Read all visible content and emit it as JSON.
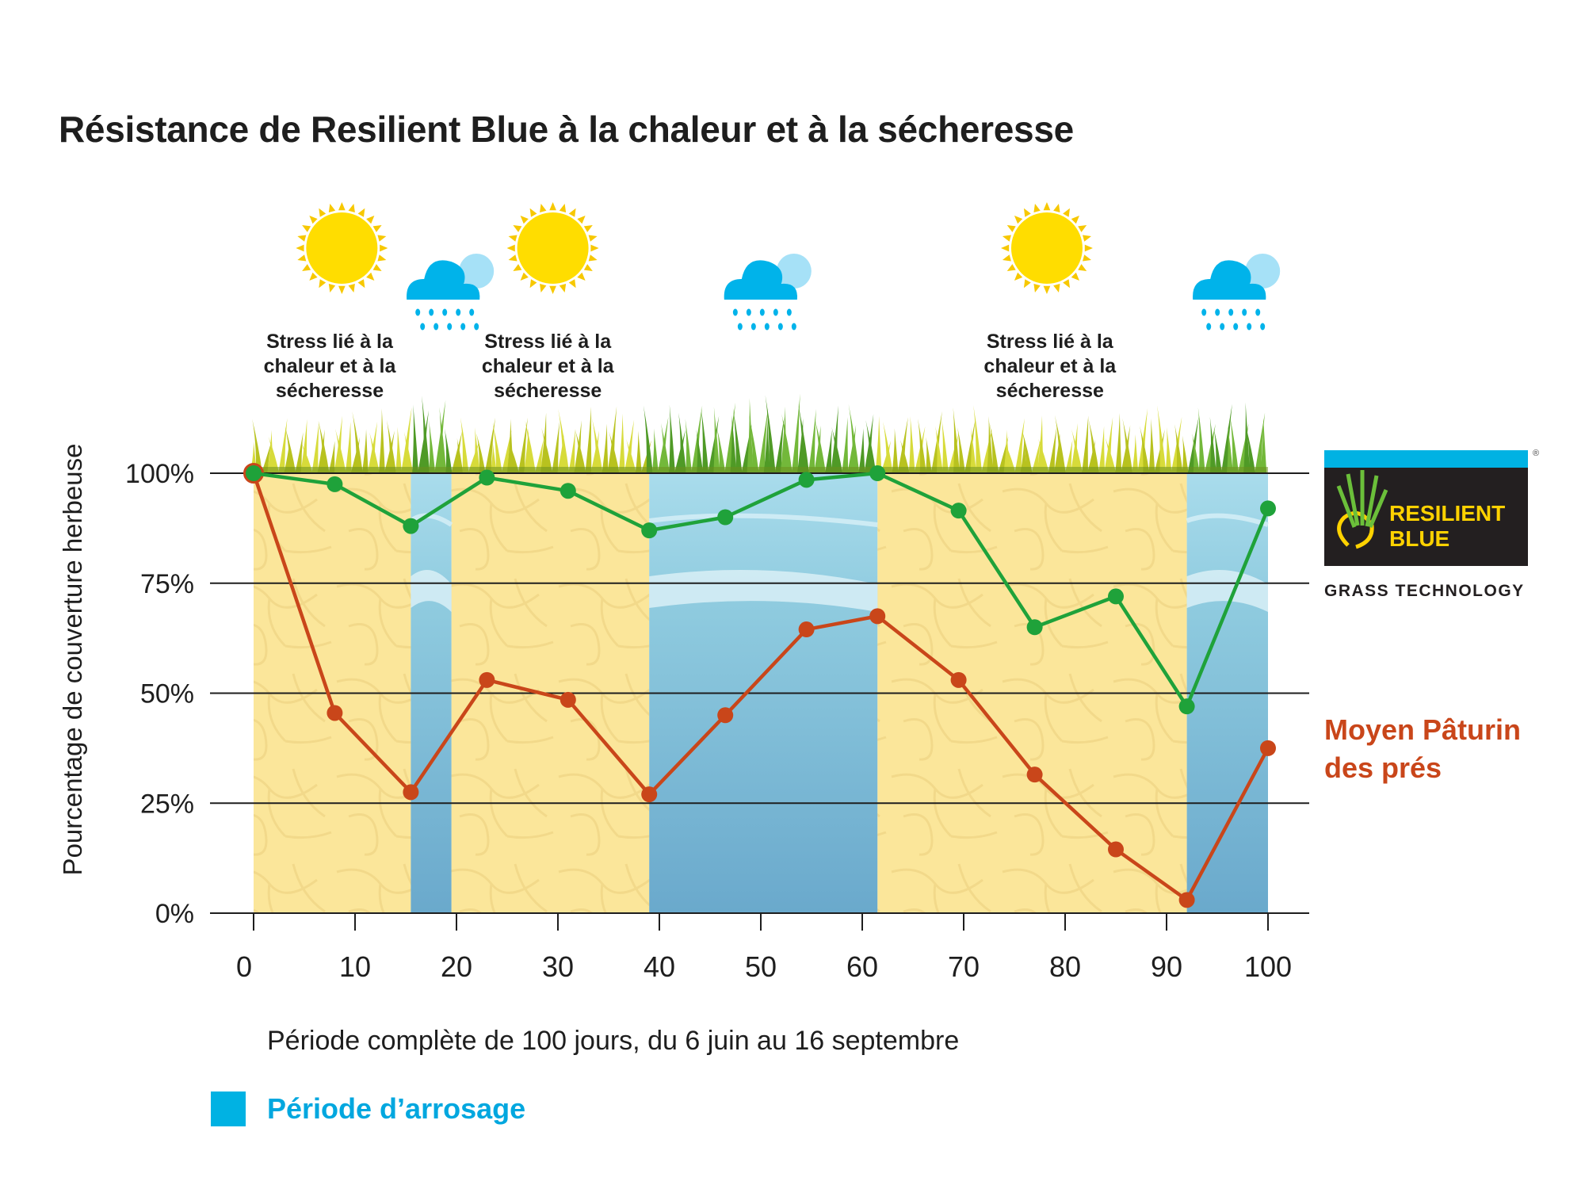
{
  "chart_data": {
    "type": "line",
    "title": "Résistance de Resilient Blue à la chaleur et à la sécheresse",
    "xlabel": "Période complète de 100 jours, du 6 juin au 16 septembre",
    "ylabel": "Pourcentage de couverture herbeuse",
    "xlim": [
      0,
      100
    ],
    "ylim": [
      0,
      100
    ],
    "x_ticks": [
      0,
      10,
      20,
      30,
      40,
      50,
      60,
      70,
      80,
      90,
      100
    ],
    "y_ticks": [
      0,
      25,
      50,
      75,
      100
    ],
    "y_tick_labels": [
      "0%",
      "25%",
      "50%",
      "75%",
      "100%"
    ],
    "grid": true,
    "series": [
      {
        "name": "",
        "color": "#1fa23a",
        "x": [
          0,
          8,
          15.5,
          23,
          31,
          39,
          46.5,
          54.5,
          61.5,
          69.5,
          77,
          85,
          92,
          100
        ],
        "values": [
          100,
          97.5,
          88,
          99,
          96,
          87,
          90,
          98.5,
          100,
          91.5,
          65,
          72,
          47,
          92
        ]
      },
      {
        "name": "Moyen Pâturin des prés",
        "color": "#c9461a",
        "x": [
          0,
          8,
          15.5,
          23,
          31,
          39,
          46.5,
          54.5,
          61.5,
          69.5,
          77,
          85,
          92,
          100
        ],
        "values": [
          100,
          45.5,
          27.5,
          53,
          48.5,
          27,
          45,
          64.5,
          67.5,
          53,
          31.5,
          14.5,
          3,
          37.5
        ]
      }
    ],
    "watering_periods": [
      [
        15.5,
        19.5
      ],
      [
        39,
        61.5
      ],
      [
        92,
        100
      ]
    ],
    "drought_periods": [
      [
        0,
        15.5
      ],
      [
        19.5,
        39
      ],
      [
        61.5,
        92
      ]
    ],
    "annotations": [
      {
        "text": "Stress lié à la chaleur et à la sécheresse",
        "x": 7.5
      },
      {
        "text": "Stress lié à la chaleur et à la sécheresse",
        "x": 29
      },
      {
        "text": "Stress lié à la chaleur et à la sécheresse",
        "x": 78.5
      }
    ],
    "weather_icons": [
      {
        "icon": "sun-icon",
        "x": 8.7
      },
      {
        "icon": "rain-cloud-icon",
        "x": 19
      },
      {
        "icon": "sun-icon",
        "x": 29.5
      },
      {
        "icon": "rain-cloud-icon",
        "x": 50.3
      },
      {
        "icon": "sun-icon",
        "x": 78.2
      },
      {
        "icon": "rain-cloud-icon",
        "x": 96.5
      }
    ],
    "legend": {
      "label": "Période d’arrosage",
      "color": "#00b2e3",
      "position": "bottom-left"
    }
  },
  "logo": {
    "line1": "RESILIENT",
    "line2": "BLUE",
    "tagline": "GRASS TECHNOLOGY",
    "registered": "®"
  },
  "colors": {
    "drought_fill": "#fbe69a",
    "water_fill": "#8ccbe0",
    "grass_dry": "#c4cf24",
    "grass_green": "#5ea82a"
  }
}
